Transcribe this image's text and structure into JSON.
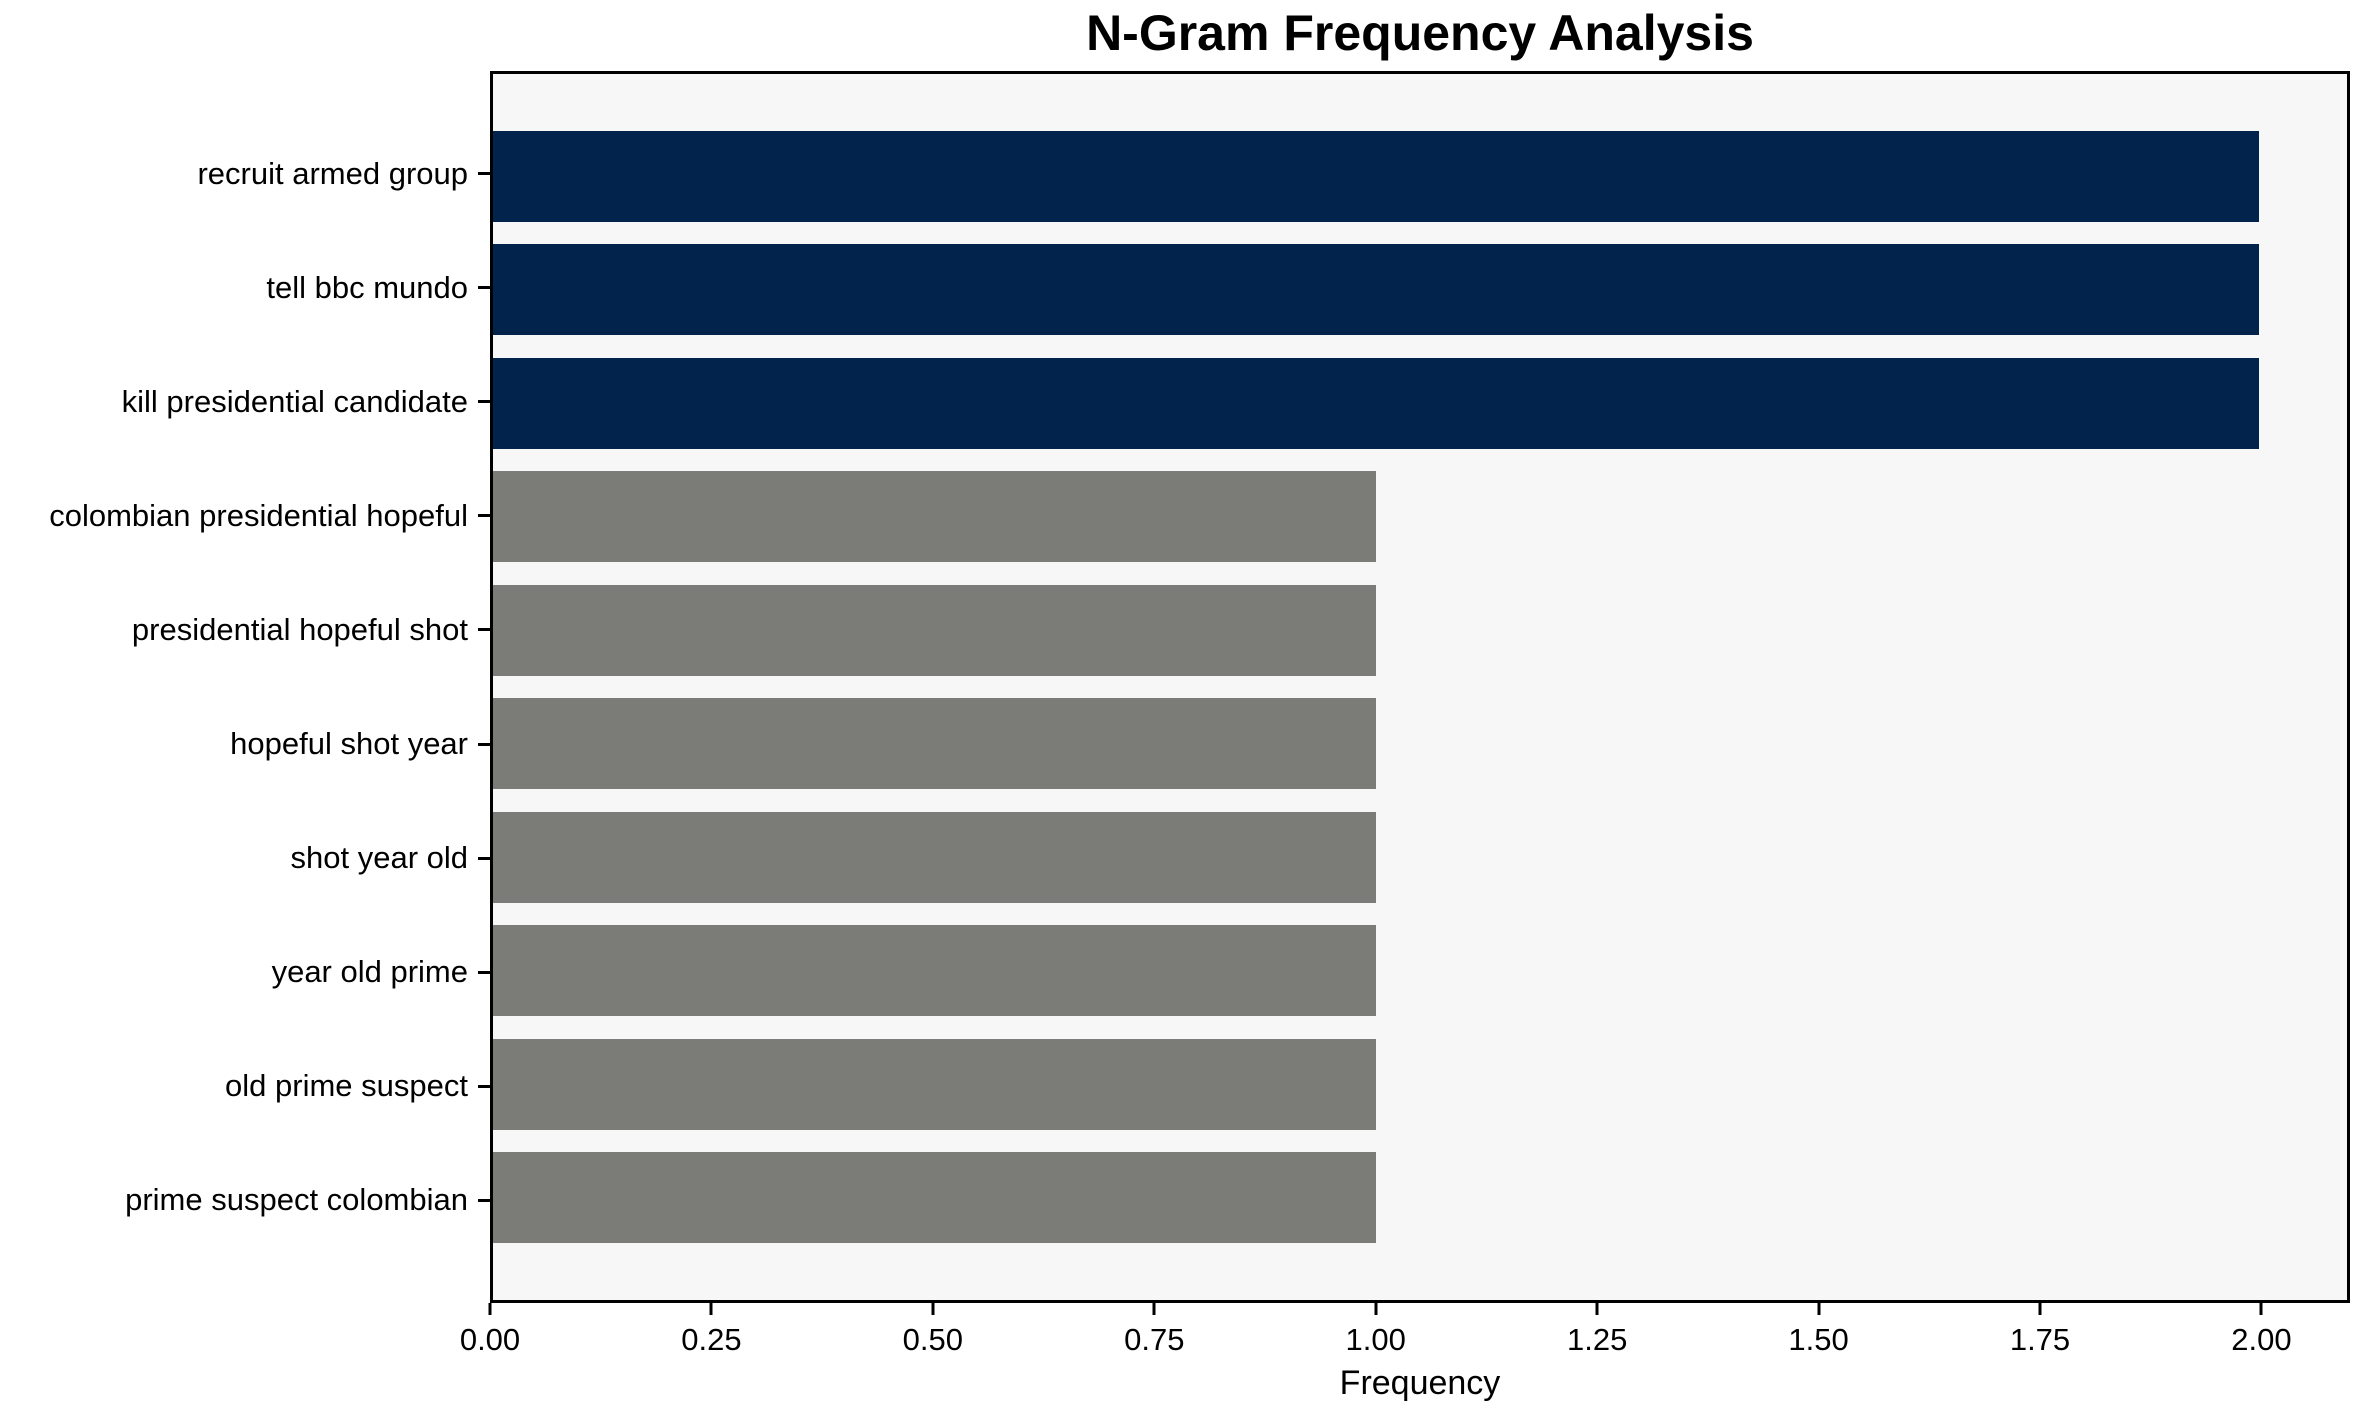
{
  "chart_data": {
    "type": "bar",
    "orientation": "horizontal",
    "title": "N-Gram Frequency Analysis",
    "xlabel": "Frequency",
    "ylabel": "",
    "categories": [
      "recruit armed group",
      "tell bbc mundo",
      "kill presidential candidate",
      "colombian presidential hopeful",
      "presidential hopeful shot",
      "hopeful shot year",
      "shot year old",
      "year old prime",
      "old prime suspect",
      "prime suspect colombian"
    ],
    "values": [
      2,
      2,
      2,
      1,
      1,
      1,
      1,
      1,
      1,
      1
    ],
    "bar_colors": [
      "#01234c",
      "#01234c",
      "#01234c",
      "#7b7b78",
      "#7b7b78",
      "#7b7b78",
      "#7b7b78",
      "#7b7b78",
      "#7b7b78",
      "#7b7b78"
    ],
    "xlim": [
      0,
      2.1
    ],
    "xticks": [
      {
        "value": 0.0,
        "label": "0.00"
      },
      {
        "value": 0.25,
        "label": "0.25"
      },
      {
        "value": 0.5,
        "label": "0.50"
      },
      {
        "value": 0.75,
        "label": "0.75"
      },
      {
        "value": 1.0,
        "label": "1.00"
      },
      {
        "value": 1.25,
        "label": "1.25"
      },
      {
        "value": 1.5,
        "label": "1.50"
      },
      {
        "value": 1.75,
        "label": "1.75"
      },
      {
        "value": 2.0,
        "label": "2.00"
      }
    ],
    "grid": false,
    "legend": null,
    "colors": {
      "high_frequency_bar": "#01234c",
      "low_frequency_bar": "#7b7b78",
      "plot_background": "#f7f7f7",
      "figure_background": "#ffffff",
      "spine": "#000000",
      "text": "#000000"
    }
  }
}
